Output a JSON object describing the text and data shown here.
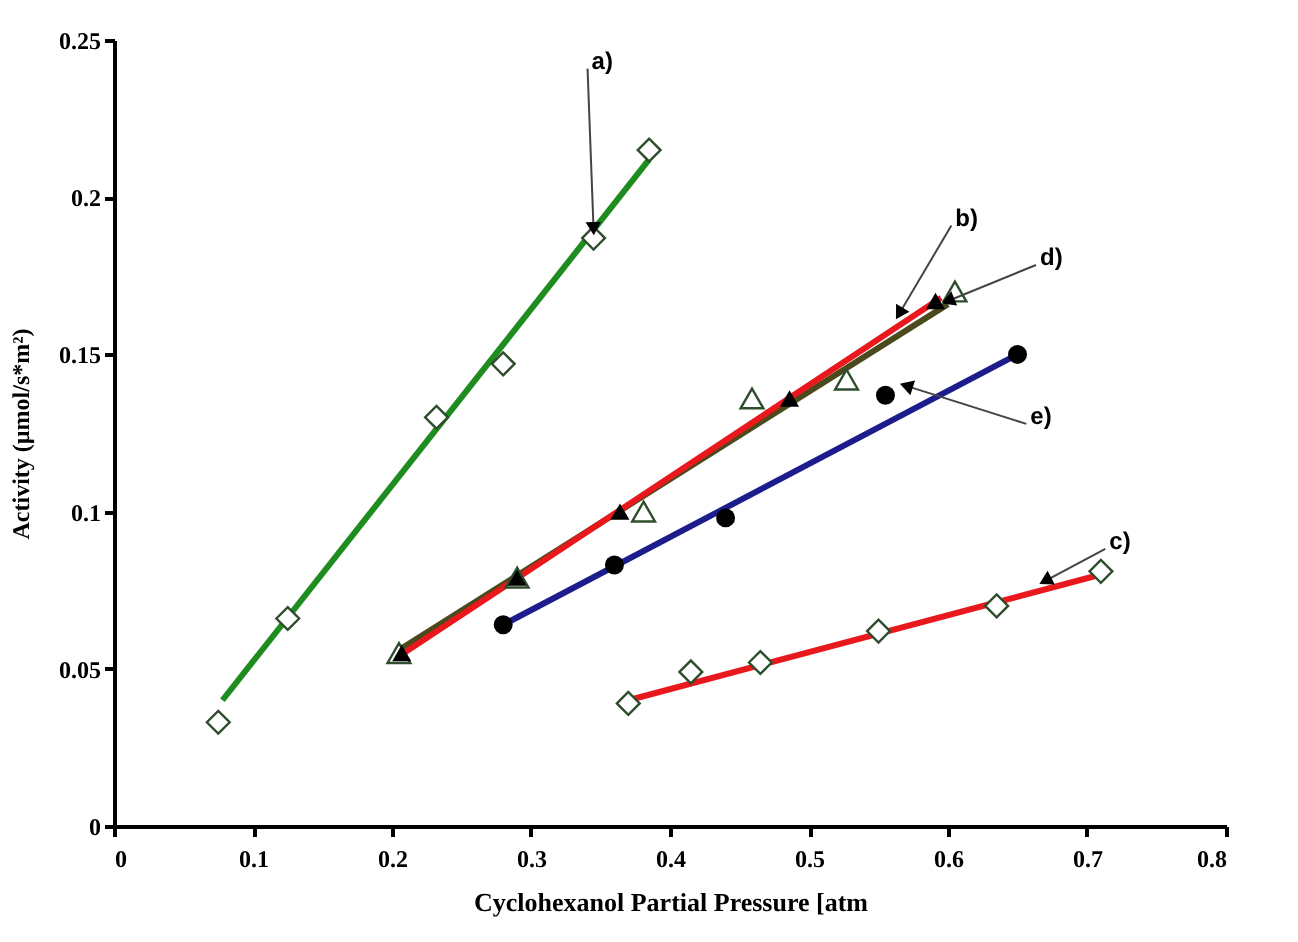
{
  "chart_data": {
    "type": "scatter",
    "xlabel": "Cyclohexanol Partial Pressure [atm",
    "ylabel": "Activity (µmol/s*m²)",
    "xlim": [
      0,
      0.8
    ],
    "xticks": [
      0,
      0.1,
      0.2,
      0.3,
      0.4,
      0.5,
      0.6,
      0.7,
      0.8
    ],
    "ylim": [
      0,
      0.25
    ],
    "yticks": [
      0,
      0.05,
      0.1,
      0.15,
      0.2,
      0.25
    ],
    "grid": false,
    "series": [
      {
        "type": "line",
        "color": "#1e8c1e",
        "x": [
          0.078,
          0.385
        ],
        "values": [
          0.04,
          0.212
        ],
        "marker": "none"
      },
      {
        "type": "line",
        "color": "#4a4a1c",
        "x": [
          0.205,
          0.6
        ],
        "values": [
          0.056,
          0.166
        ],
        "marker": "none"
      },
      {
        "type": "line",
        "color": "#e8181c",
        "x": [
          0.205,
          0.595
        ],
        "values": [
          0.054,
          0.168
        ],
        "marker": "none"
      },
      {
        "type": "line",
        "color": "#1c1c8c",
        "x": [
          0.28,
          0.65
        ],
        "values": [
          0.064,
          0.15
        ],
        "marker": "none"
      },
      {
        "type": "line",
        "color": "#e8181c",
        "x": [
          0.37,
          0.71
        ],
        "values": [
          0.04,
          0.08
        ],
        "marker": "none"
      },
      {
        "color": "#2d4d2d",
        "marker": "diamond",
        "x": [
          0.075,
          0.125,
          0.232,
          0.28,
          0.345,
          0.385
        ],
        "values": [
          0.033,
          0.066,
          0.13,
          0.147,
          0.187,
          0.215
        ]
      },
      {
        "color": "#2d4d2d",
        "marker": "triangle",
        "x": [
          0.205,
          0.29,
          0.381,
          0.459,
          0.527,
          0.605
        ],
        "values": [
          0.055,
          0.079,
          0.1,
          0.136,
          0.142,
          0.17
        ]
      },
      {
        "color": "#000000",
        "marker": "triangle",
        "x": [
          0.207,
          0.29,
          0.364,
          0.486,
          0.591
        ],
        "values": [
          0.055,
          0.079,
          0.1,
          0.136,
          0.167
        ]
      },
      {
        "color": "#000000",
        "marker": "circle",
        "x": [
          0.28,
          0.36,
          0.44,
          0.555,
          0.65
        ],
        "values": [
          0.064,
          0.083,
          0.098,
          0.137,
          0.15
        ]
      },
      {
        "color": "#2d4d2d",
        "marker": "diamond",
        "x": [
          0.37,
          0.415,
          0.465,
          0.55,
          0.635,
          0.71
        ],
        "values": [
          0.039,
          0.049,
          0.052,
          0.062,
          0.07,
          0.081
        ]
      }
    ],
    "annotations": [
      {
        "text": "a)",
        "x": 0.345,
        "y": 0.19
      },
      {
        "text": "b)",
        "x": 0.565,
        "y": 0.163
      },
      {
        "text": "c)",
        "x": 0.67,
        "y": 0.078
      },
      {
        "text": "d)",
        "x": 0.6,
        "y": 0.167
      },
      {
        "text": "e)",
        "x": 0.57,
        "y": 0.14
      }
    ]
  }
}
